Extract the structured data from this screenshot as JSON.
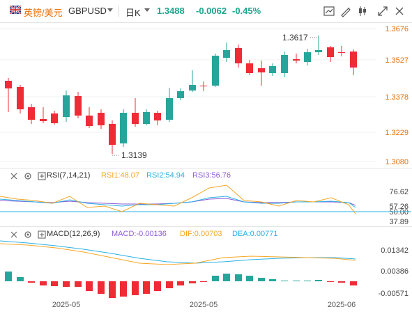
{
  "header": {
    "pair_cn": "英镑/美元",
    "pair_code": "GBPUSD",
    "period": "日K",
    "price": "1.3488",
    "change": "-0.0062",
    "change_pct": "-0.45%",
    "toolbar_icons": [
      "chart-settings-icon",
      "draw-icon",
      "candlestick-type-icon",
      "indicator-icon",
      "fullscreen-icon",
      "close-icon"
    ]
  },
  "main": {
    "y_ticks": [
      "1.3676",
      "1.3527",
      "1.3378",
      "1.3229",
      "1.3080"
    ],
    "high_label": "1.3617",
    "low_label": "1.3139"
  },
  "rsi": {
    "title": "RSI(7,14,21)",
    "rsi1": "RSI1:48.07",
    "rsi2": "RSI2:54.94",
    "rsi3": "RSI3:56.76",
    "y_ticks": [
      "76.62",
      "57.26",
      "50.00",
      "37.89"
    ]
  },
  "macd": {
    "title": "MACD(12,26,9)",
    "macd": "MACD:-0.00136",
    "dif": "DIF:0.00703",
    "dea": "DEA:0.00771",
    "y_ticks": [
      "0.01342",
      "0.00386",
      "-0.00571"
    ]
  },
  "x_axis": [
    "2025-05",
    "2025-05",
    "2025-06"
  ],
  "colors": {
    "up": "#26a69a",
    "down": "#ef2b36",
    "accent_green": "#1aa58c",
    "pair_orange": "#e8710a",
    "axis_text": "#e8710a",
    "rsi1": "#f5a623",
    "rsi2": "#2ab1e4",
    "rsi3": "#8e5ad8",
    "dif": "#f5a623",
    "dea": "#2ab1e4"
  }
}
